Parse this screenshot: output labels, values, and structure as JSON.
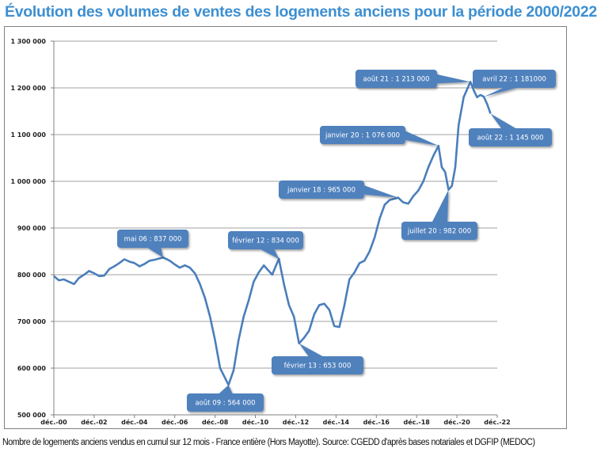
{
  "title": "Évolution des volumes de ventes des logements anciens pour la période 2000/2022",
  "caption": "Nombre de logements anciens vendus en cumul sur 12 mois - France entière (Hors Mayotte). Source: CGEDD d'après bases notariales et DGFIP (MEDOC)",
  "colors": {
    "title": "#3d8fd1",
    "line": "#4a7ebb",
    "callout": "#4f81bd",
    "grid": "#a0a0a0"
  },
  "chart_data": {
    "type": "line",
    "title": "Évolution des volumes de ventes des logements anciens pour la période 2000/2022",
    "xlabel": "",
    "ylabel": "",
    "ylim": [
      500000,
      1300000
    ],
    "xlim": [
      "2000-12",
      "2022-12"
    ],
    "grid": true,
    "y_ticks": [
      "500 000",
      "600 000",
      "700 000",
      "800 000",
      "900 000",
      "1 000 000",
      "1 100 000",
      "1 200 000",
      "1 300 000"
    ],
    "x_ticks": [
      "déc.-00",
      "déc.-02",
      "déc.-04",
      "déc.-06",
      "déc.-08",
      "déc.-10",
      "déc.-12",
      "déc.-14",
      "déc.-16",
      "déc.-18",
      "déc.-20",
      "déc.-22"
    ],
    "x": [
      "2000-12",
      "2001-03",
      "2001-06",
      "2001-09",
      "2001-12",
      "2002-03",
      "2002-06",
      "2002-09",
      "2002-12",
      "2003-03",
      "2003-06",
      "2003-09",
      "2003-12",
      "2004-03",
      "2004-06",
      "2004-09",
      "2004-12",
      "2005-03",
      "2005-06",
      "2005-09",
      "2005-12",
      "2006-05",
      "2006-09",
      "2006-12",
      "2007-03",
      "2007-06",
      "2007-09",
      "2007-12",
      "2008-03",
      "2008-06",
      "2008-09",
      "2008-12",
      "2009-03",
      "2009-08",
      "2009-11",
      "2010-02",
      "2010-05",
      "2010-08",
      "2010-11",
      "2011-02",
      "2011-05",
      "2011-10",
      "2012-02",
      "2012-05",
      "2012-08",
      "2012-11",
      "2013-02",
      "2013-05",
      "2013-08",
      "2013-11",
      "2014-02",
      "2014-05",
      "2014-08",
      "2014-11",
      "2015-02",
      "2015-05",
      "2015-08",
      "2015-11",
      "2016-02",
      "2016-05",
      "2016-08",
      "2016-11",
      "2017-02",
      "2017-05",
      "2017-08",
      "2018-01",
      "2018-04",
      "2018-07",
      "2018-10",
      "2019-01",
      "2019-04",
      "2019-07",
      "2019-10",
      "2020-01",
      "2020-03",
      "2020-05",
      "2020-07",
      "2020-09",
      "2020-11",
      "2021-01",
      "2021-04",
      "2021-08",
      "2021-10",
      "2021-12",
      "2022-02",
      "2022-04",
      "2022-06",
      "2022-08"
    ],
    "values": [
      797000,
      788000,
      790000,
      785000,
      780000,
      793000,
      800000,
      808000,
      803000,
      797000,
      798000,
      812000,
      818000,
      825000,
      833000,
      828000,
      825000,
      818000,
      823000,
      830000,
      832000,
      837000,
      830000,
      822000,
      815000,
      820000,
      815000,
      803000,
      780000,
      750000,
      710000,
      660000,
      600000,
      564000,
      595000,
      660000,
      710000,
      745000,
      785000,
      805000,
      820000,
      800000,
      834000,
      780000,
      735000,
      710000,
      653000,
      665000,
      680000,
      715000,
      735000,
      738000,
      725000,
      690000,
      688000,
      735000,
      790000,
      805000,
      825000,
      830000,
      850000,
      880000,
      920000,
      950000,
      960000,
      965000,
      955000,
      952000,
      968000,
      980000,
      1000000,
      1030000,
      1055000,
      1076000,
      1030000,
      1020000,
      982000,
      990000,
      1030000,
      1120000,
      1180000,
      1213000,
      1195000,
      1180000,
      1185000,
      1181000,
      1165000,
      1145000
    ],
    "annotations": [
      {
        "label": "mai 06 : 837 000",
        "x": "2006-05",
        "y": 837000
      },
      {
        "label": "août 09 : 564 000",
        "x": "2009-08",
        "y": 564000
      },
      {
        "label": "février 12 : 834 000",
        "x": "2012-02",
        "y": 834000
      },
      {
        "label": "février 13 : 653 000",
        "x": "2013-02",
        "y": 653000
      },
      {
        "label": "janvier 18 : 965 000",
        "x": "2018-01",
        "y": 965000
      },
      {
        "label": "janvier 20 : 1 076 000",
        "x": "2020-01",
        "y": 1076000
      },
      {
        "label": "juillet 20 : 982 000",
        "x": "2020-07",
        "y": 982000
      },
      {
        "label": "août 21 : 1 213 000",
        "x": "2021-08",
        "y": 1213000
      },
      {
        "label": "avril 22 : 1 181000",
        "x": "2022-04",
        "y": 1181000
      },
      {
        "label": "août 22 : 1 145 000",
        "x": "2022-08",
        "y": 1145000
      }
    ]
  }
}
